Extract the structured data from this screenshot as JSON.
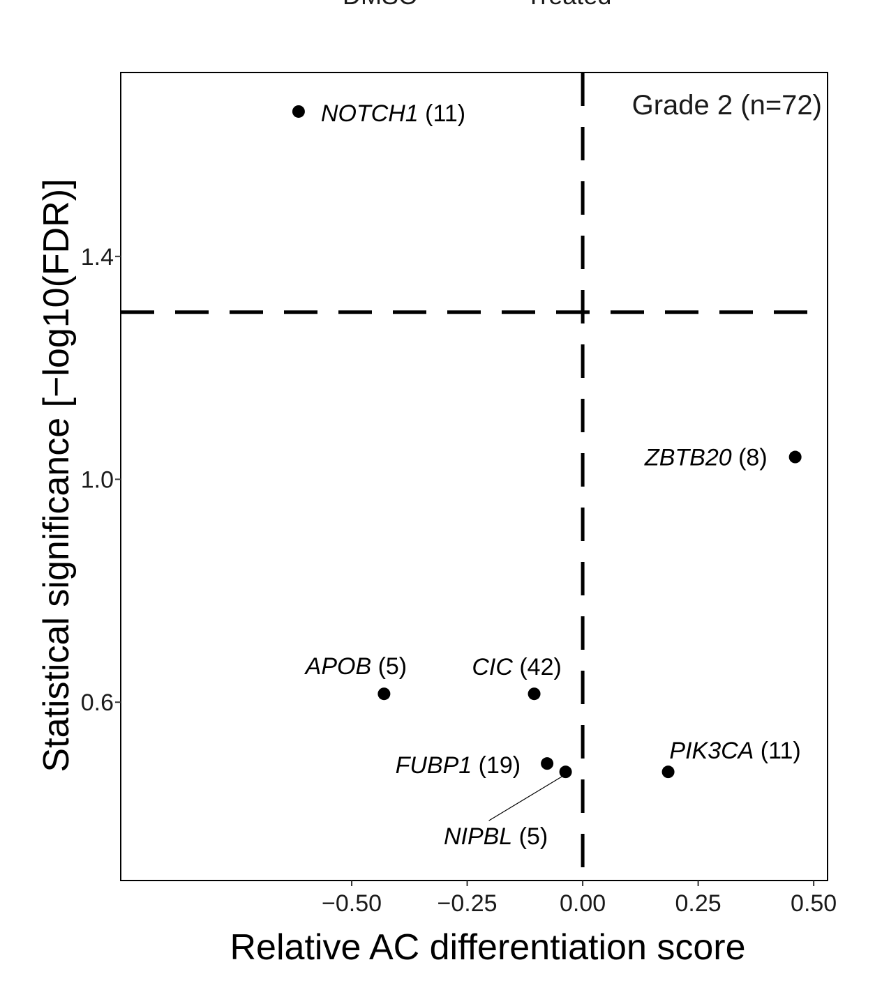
{
  "chart_data": {
    "type": "scatter",
    "title": "",
    "xlabel": "Relative AC differentiation score",
    "ylabel": "Statistical significance [−log10(FDR)]",
    "annotation": "Grade 2 (n=72)",
    "top_labels": [
      "DMSO",
      "Treated"
    ],
    "xlim": [
      -1.0,
      0.53
    ],
    "ylim": [
      0.28,
      1.73
    ],
    "x_ticks": [
      {
        "value": -0.5,
        "label": "−0.50"
      },
      {
        "value": -0.25,
        "label": "−0.25"
      },
      {
        "value": 0.0,
        "label": "0.00"
      },
      {
        "value": 0.25,
        "label": "0.25"
      },
      {
        "value": 0.5,
        "label": "0.50"
      }
    ],
    "y_ticks": [
      {
        "value": 0.6,
        "label": "0.6"
      },
      {
        "value": 1.0,
        "label": "1.0"
      },
      {
        "value": 1.4,
        "label": "1.4"
      }
    ],
    "reference_lines": {
      "x": 0.0,
      "y": 1.3
    },
    "grid": false,
    "points": [
      {
        "gene": "NOTCH1",
        "count": "(11)",
        "x": -0.615,
        "y": 1.66
      },
      {
        "gene": "ZBTB20",
        "count": "(8)",
        "x": 0.46,
        "y": 1.04
      },
      {
        "gene": "APOB",
        "count": "(5)",
        "x": -0.43,
        "y": 0.615
      },
      {
        "gene": "CIC",
        "count": "(42)",
        "x": -0.105,
        "y": 0.615
      },
      {
        "gene": "FUBP1",
        "count": "(19)",
        "x": -0.077,
        "y": 0.49
      },
      {
        "gene": "NIPBL",
        "count": "(5)",
        "x": -0.037,
        "y": 0.475
      },
      {
        "gene": "PIK3CA",
        "count": "(11)",
        "x": 0.185,
        "y": 0.475
      }
    ],
    "colors": {
      "points": "#000000",
      "lines": "#000000",
      "text": "#1a1a1a"
    }
  }
}
